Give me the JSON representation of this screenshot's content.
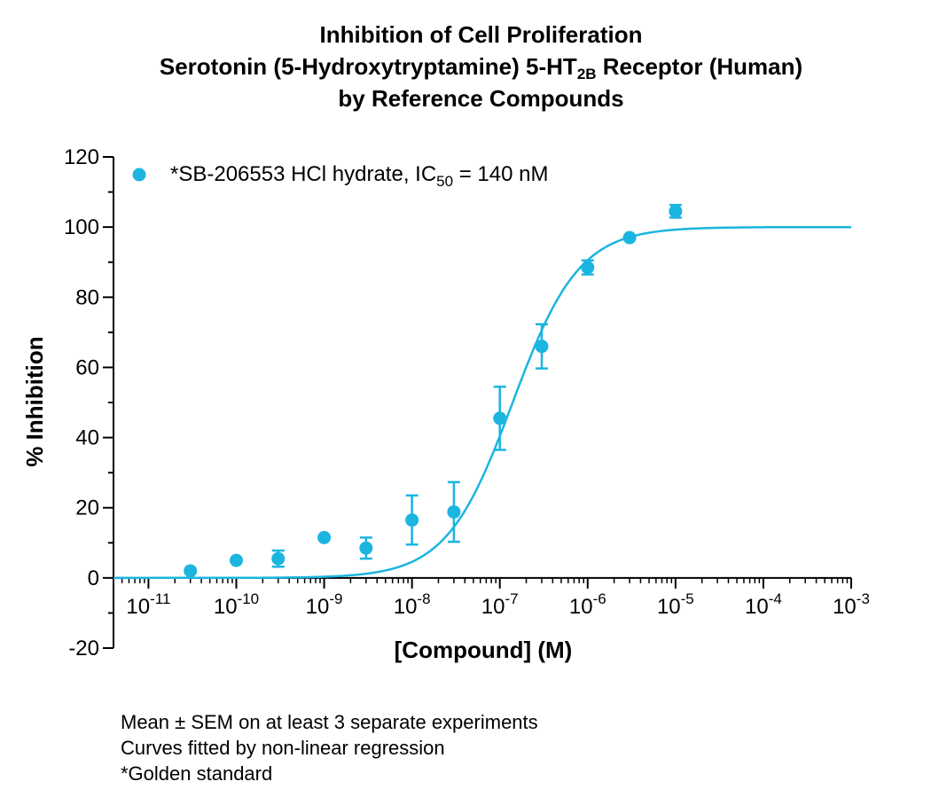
{
  "title": {
    "line1": "Inhibition of Cell Proliferation",
    "line2_pre": "Serotonin (5-Hydroxytryptamine) 5-HT",
    "line2_sub": "2B",
    "line2_post": " Receptor  (Human)",
    "line3": "by Reference Compounds"
  },
  "chart_data": {
    "type": "scatter",
    "xlabel": "[Compound] (M)",
    "ylabel": "% Inhibition",
    "x_scale": "log",
    "xlim": [
      4e-12,
      0.001
    ],
    "ylim": [
      -20,
      120
    ],
    "x_ticks": [
      {
        "value": 1e-11,
        "base": "10",
        "exp": "-11"
      },
      {
        "value": 1e-10,
        "base": "10",
        "exp": "-10"
      },
      {
        "value": 1e-09,
        "base": "10",
        "exp": "-9"
      },
      {
        "value": 1e-08,
        "base": "10",
        "exp": "-8"
      },
      {
        "value": 1e-07,
        "base": "10",
        "exp": "-7"
      },
      {
        "value": 1e-06,
        "base": "10",
        "exp": "-6"
      },
      {
        "value": 1e-05,
        "base": "10",
        "exp": "-5"
      },
      {
        "value": 0.0001,
        "base": "10",
        "exp": "-4"
      },
      {
        "value": 0.001,
        "base": "10",
        "exp": "-3"
      }
    ],
    "y_ticks": [
      -20,
      0,
      20,
      40,
      60,
      80,
      100,
      120
    ],
    "grid": false,
    "legend_position": "top-left",
    "series": [
      {
        "name": "*SB-206553 HCl hydrate, IC",
        "name_sub": "50",
        "name_post": " = 140 nM",
        "color": "#1bb5e0",
        "points": [
          {
            "x": 3e-11,
            "y": 2,
            "sem": 0
          },
          {
            "x": 1e-10,
            "y": 5,
            "sem": 0
          },
          {
            "x": 3e-10,
            "y": 5.5,
            "sem": 2.3
          },
          {
            "x": 1e-09,
            "y": 11.5,
            "sem": 0
          },
          {
            "x": 3e-09,
            "y": 8.5,
            "sem": 3
          },
          {
            "x": 1e-08,
            "y": 16.5,
            "sem": 7
          },
          {
            "x": 3e-08,
            "y": 18.8,
            "sem": 8.5
          },
          {
            "x": 1e-07,
            "y": 45.5,
            "sem": 9
          },
          {
            "x": 3e-07,
            "y": 66,
            "sem": 6.3
          },
          {
            "x": 1e-06,
            "y": 88.5,
            "sem": 2
          },
          {
            "x": 3e-06,
            "y": 97,
            "sem": 0
          },
          {
            "x": 1e-05,
            "y": 104.5,
            "sem": 1.8
          }
        ],
        "fit": {
          "bottom": 0,
          "top": 100,
          "ic50": 1.4e-07,
          "hill": 1.15
        }
      }
    ]
  },
  "footnotes": [
    "Mean ± SEM on at least 3 separate experiments",
    "Curves fitted by non-linear regression",
    "*Golden standard"
  ]
}
